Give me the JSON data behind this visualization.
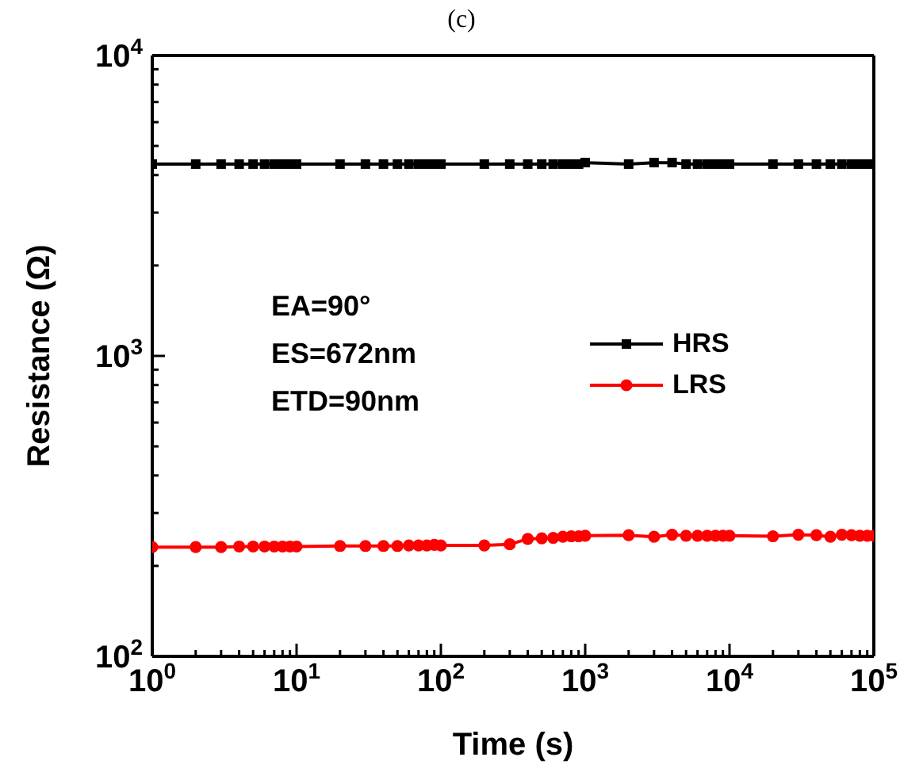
{
  "chart_data": {
    "type": "line",
    "title": "(c)",
    "xlabel": "Time (s)",
    "ylabel": "Resistance (Ω)",
    "log": "xy",
    "x": [
      1,
      2,
      3,
      4,
      5,
      6,
      7,
      8,
      9,
      10,
      20,
      30,
      40,
      50,
      60,
      70,
      80,
      90,
      100,
      200,
      300,
      400,
      500,
      600,
      700,
      800,
      900,
      1000,
      2000,
      3000,
      4000,
      5000,
      6000,
      7000,
      8000,
      9000,
      10000,
      20000,
      30000,
      40000,
      50000,
      60000,
      70000,
      80000,
      90000,
      100000
    ],
    "series": [
      {
        "name": "HRS",
        "color": "#000000",
        "marker": "square",
        "values": [
          4350,
          4350,
          4350,
          4350,
          4350,
          4350,
          4350,
          4350,
          4350,
          4350,
          4350,
          4350,
          4350,
          4350,
          4350,
          4350,
          4350,
          4350,
          4350,
          4350,
          4350,
          4350,
          4350,
          4350,
          4350,
          4350,
          4350,
          4400,
          4350,
          4400,
          4400,
          4350,
          4350,
          4350,
          4350,
          4350,
          4350,
          4350,
          4350,
          4350,
          4350,
          4350,
          4350,
          4350,
          4350,
          4350
        ]
      },
      {
        "name": "LRS",
        "color": "#ff0000",
        "marker": "circle",
        "values": [
          231,
          231,
          231,
          232,
          232,
          232,
          232,
          232,
          232,
          232,
          233,
          233,
          233,
          233,
          234,
          234,
          234,
          235,
          234,
          234,
          236,
          246,
          247,
          248,
          250,
          251,
          251,
          252,
          253,
          250,
          254,
          252,
          252,
          252,
          252,
          252,
          252,
          251,
          254,
          253,
          250,
          254,
          253,
          252,
          252,
          252
        ]
      }
    ],
    "xlim": [
      1,
      100000
    ],
    "ylim": [
      100,
      10000
    ],
    "xticks": [
      {
        "value": 1,
        "label": "10$^{0}$"
      },
      {
        "value": 2,
        "label": null
      },
      {
        "value": 3,
        "label": null
      },
      {
        "value": 4,
        "label": null
      },
      {
        "value": 5,
        "label": null
      },
      {
        "value": 6,
        "label": null
      },
      {
        "value": 7,
        "label": null
      },
      {
        "value": 8,
        "label": null
      },
      {
        "value": 9,
        "label": null
      },
      {
        "value": 10,
        "label": "10$^{1}$"
      },
      {
        "value": 20,
        "label": null
      },
      {
        "value": 30,
        "label": null
      },
      {
        "value": 40,
        "label": null
      },
      {
        "value": 50,
        "label": null
      },
      {
        "value": 60,
        "label": null
      },
      {
        "value": 70,
        "label": null
      },
      {
        "value": 80,
        "label": null
      },
      {
        "value": 90,
        "label": null
      },
      {
        "value": 100,
        "label": "10$^{2}$"
      },
      {
        "value": 200,
        "label": null
      },
      {
        "value": 300,
        "label": null
      },
      {
        "value": 400,
        "label": null
      },
      {
        "value": 500,
        "label": null
      },
      {
        "value": 600,
        "label": null
      },
      {
        "value": 700,
        "label": null
      },
      {
        "value": 800,
        "label": null
      },
      {
        "value": 900,
        "label": null
      },
      {
        "value": 1000,
        "label": "10$^{3}$"
      },
      {
        "value": 2000,
        "label": null
      },
      {
        "value": 3000,
        "label": null
      },
      {
        "value": 4000,
        "label": null
      },
      {
        "value": 5000,
        "label": null
      },
      {
        "value": 6000,
        "label": null
      },
      {
        "value": 7000,
        "label": null
      },
      {
        "value": 8000,
        "label": null
      },
      {
        "value": 9000,
        "label": null
      },
      {
        "value": 10000,
        "label": "10$^{4}$"
      },
      {
        "value": 20000,
        "label": null
      },
      {
        "value": 30000,
        "label": null
      },
      {
        "value": 40000,
        "label": null
      },
      {
        "value": 50000,
        "label": null
      },
      {
        "value": 60000,
        "label": null
      },
      {
        "value": 70000,
        "label": null
      },
      {
        "value": 80000,
        "label": null
      },
      {
        "value": 90000,
        "label": null
      },
      {
        "value": 100000,
        "label": "10$^{5}$"
      }
    ],
    "yticks": [
      {
        "value": 100,
        "label": "10$^{2}$"
      },
      {
        "value": 200,
        "label": null
      },
      {
        "value": 300,
        "label": null
      },
      {
        "value": 400,
        "label": null
      },
      {
        "value": 500,
        "label": null
      },
      {
        "value": 600,
        "label": null
      },
      {
        "value": 700,
        "label": null
      },
      {
        "value": 800,
        "label": null
      },
      {
        "value": 900,
        "label": null
      },
      {
        "value": 1000,
        "label": "10$^{3}$"
      },
      {
        "value": 2000,
        "label": null
      },
      {
        "value": 3000,
        "label": null
      },
      {
        "value": 4000,
        "label": null
      },
      {
        "value": 5000,
        "label": null
      },
      {
        "value": 6000,
        "label": null
      },
      {
        "value": 7000,
        "label": null
      },
      {
        "value": 8000,
        "label": null
      },
      {
        "value": 9000,
        "label": null
      },
      {
        "value": 10000,
        "label": "10$^{4}$"
      }
    ],
    "legend": "right",
    "line_style": "solid",
    "annotations": [
      "EA=90°",
      "ES=672nm",
      "ETD=90nm"
    ]
  }
}
